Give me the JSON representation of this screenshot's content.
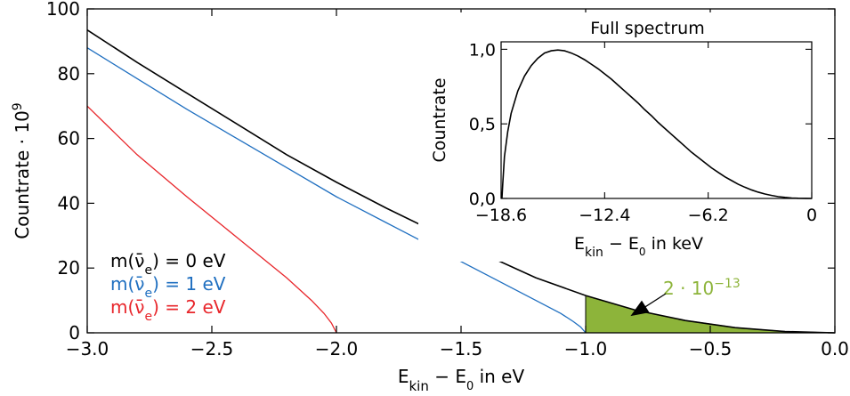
{
  "chart_data": [
    {
      "type": "line",
      "title": "",
      "xlabel": "E_kin − E₀ in eV",
      "xlabel_parts": {
        "pre": "E",
        "sub": "kin",
        "mid": " − E",
        "sub2": "0",
        "post": " in eV"
      },
      "ylabel": "Countrate · 10⁹",
      "ylabel_parts": {
        "text": "Countrate · 10",
        "sup": "9"
      },
      "xlim": [
        -3.0,
        0.0
      ],
      "ylim": [
        0,
        100
      ],
      "xticks": [
        -3.0,
        -2.5,
        -2.0,
        -1.5,
        -1.0,
        -0.5,
        0.0
      ],
      "xtick_labels": [
        "−3.0",
        "−2.5",
        "−2.0",
        "−1.5",
        "−1.0",
        "−0.5",
        "0.0"
      ],
      "yticks": [
        0,
        20,
        40,
        60,
        80,
        100
      ],
      "ytick_labels": [
        "0",
        "20",
        "40",
        "60",
        "80",
        "100"
      ],
      "grid": false,
      "legend_position": "lower-left",
      "series": [
        {
          "name": "m(ν̄e) = 0 eV",
          "label_parts": {
            "pre": "m(ν̄",
            "sub": "e",
            "post": ") = 0 eV"
          },
          "color": "#000000",
          "mass_eV": 0,
          "x": [
            -3.0,
            -2.8,
            -2.6,
            -2.4,
            -2.2,
            -2.0,
            -1.8,
            -1.6,
            -1.4,
            -1.2,
            -1.0,
            -0.8,
            -0.6,
            -0.4,
            -0.2,
            0.0
          ],
          "y": [
            93.5,
            83.5,
            74.0,
            64.5,
            55.0,
            46.5,
            38.5,
            31.0,
            24.0,
            17.0,
            11.5,
            7.0,
            3.8,
            1.6,
            0.4,
            0.0
          ]
        },
        {
          "name": "m(ν̄e) = 1 eV",
          "label_parts": {
            "pre": "m(ν̄",
            "sub": "e",
            "post": ") = 1 eV"
          },
          "color": "#1f6fc0",
          "mass_eV": 1,
          "x": [
            -3.0,
            -2.8,
            -2.6,
            -2.4,
            -2.2,
            -2.0,
            -1.8,
            -1.6,
            -1.4,
            -1.2,
            -1.1,
            -1.05,
            -1.02,
            -1.0
          ],
          "y": [
            88.0,
            78.5,
            69.0,
            60.0,
            51.0,
            42.0,
            34.0,
            26.0,
            18.0,
            10.0,
            6.0,
            3.5,
            1.8,
            0.0
          ]
        },
        {
          "name": "m(ν̄e) = 2 eV",
          "label_parts": {
            "pre": "m(ν̄",
            "sub": "e",
            "post": ") = 2 eV"
          },
          "color": "#e8262b",
          "mass_eV": 2,
          "x": [
            -3.0,
            -2.8,
            -2.6,
            -2.4,
            -2.2,
            -2.1,
            -2.05,
            -2.02,
            -2.0
          ],
          "y": [
            70.0,
            55.0,
            42.0,
            29.5,
            17.0,
            10.0,
            6.0,
            3.0,
            0.0
          ]
        }
      ],
      "shaded_region": {
        "color": "#8db43a",
        "x_from": -1.0,
        "x_to": 0.0,
        "bounded_by": "m(ν̄e) = 0 eV"
      },
      "annotation": {
        "text": "2 · 10",
        "sup": "−13",
        "color": "#8db43a",
        "arrow_to": [
          -0.82,
          3.0
        ]
      }
    },
    {
      "type": "line",
      "title": "Full spectrum",
      "xlabel": "E_kin − E₀ in keV",
      "xlabel_parts": {
        "pre": "E",
        "sub": "kin",
        "mid": " − E",
        "sub2": "0",
        "post": " in keV"
      },
      "ylabel": "Countrate",
      "xlim": [
        -18.6,
        0
      ],
      "ylim": [
        0,
        1.05
      ],
      "xticks": [
        -18.6,
        -12.4,
        -6.2,
        0
      ],
      "xtick_labels": [
        "−18.6",
        "−12.4",
        "−6.2",
        "0"
      ],
      "yticks": [
        0,
        0.5,
        1.0
      ],
      "ytick_labels": [
        "0,0",
        "0,5",
        "1,0"
      ],
      "grid": false,
      "series": [
        {
          "color": "#000000",
          "x": [
            -18.55,
            -18.5,
            -18.4,
            -18.2,
            -18.0,
            -17.6,
            -17.2,
            -16.8,
            -16.4,
            -16.0,
            -15.6,
            -15.2,
            -14.8,
            -14.4,
            -14.0,
            -13.6,
            -13.2,
            -12.8,
            -12.4,
            -12.0,
            -11.6,
            -11.2,
            -10.8,
            -10.4,
            -10.0,
            -9.6,
            -9.2,
            -8.8,
            -8.4,
            -8.0,
            -7.6,
            -7.2,
            -6.8,
            -6.4,
            -6.0,
            -5.6,
            -5.2,
            -4.8,
            -4.4,
            -4.0,
            -3.6,
            -3.2,
            -2.8,
            -2.4,
            -2.0,
            -1.6,
            -1.2,
            -0.8,
            -0.4,
            0.0
          ],
          "y": [
            0.0,
            0.1,
            0.28,
            0.45,
            0.57,
            0.72,
            0.82,
            0.89,
            0.94,
            0.975,
            0.99,
            0.995,
            0.99,
            0.975,
            0.955,
            0.93,
            0.9,
            0.87,
            0.835,
            0.8,
            0.76,
            0.72,
            0.68,
            0.64,
            0.595,
            0.555,
            0.51,
            0.47,
            0.43,
            0.39,
            0.35,
            0.31,
            0.275,
            0.24,
            0.205,
            0.175,
            0.145,
            0.12,
            0.095,
            0.075,
            0.057,
            0.042,
            0.03,
            0.02,
            0.012,
            0.007,
            0.003,
            0.001,
            0.0003,
            0.0
          ]
        }
      ]
    }
  ]
}
